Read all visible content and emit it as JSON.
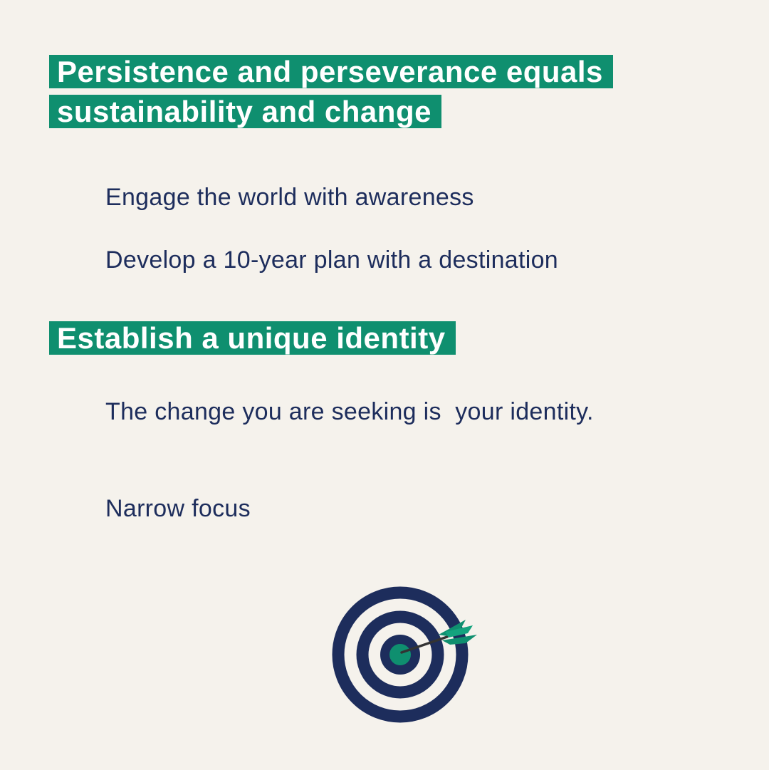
{
  "headings": [
    "Persistence and perseverance equals sustainability and change",
    "Establish a unique identity"
  ],
  "items": [
    "Engage the world with awareness",
    "Develop a 10-year plan with a destination",
    "The change you are seeking is  your identity.",
    "Narrow focus"
  ],
  "colors": {
    "background": "#f5f2ec",
    "accent_green": "#0f8f6f",
    "navy": "#1d2d5c",
    "heading_text": "#ffffff"
  },
  "graphic": {
    "icon": "target-with-arrow-icon"
  }
}
